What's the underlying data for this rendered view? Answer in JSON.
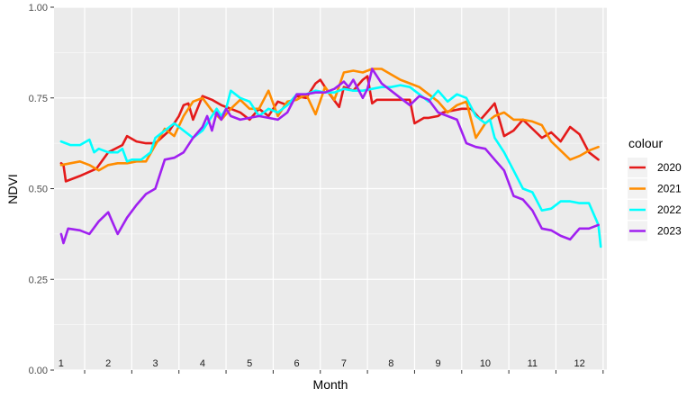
{
  "chart_data": {
    "type": "line",
    "xlabel": "Month",
    "ylabel": "NDVI",
    "xlim": [
      1,
      12.5
    ],
    "ylim": [
      0,
      1
    ],
    "yticks": [
      0.0,
      0.25,
      0.5,
      0.75,
      1.0
    ],
    "ytick_labels": [
      "0.00",
      "0.25",
      "0.50",
      "0.75",
      "1.00"
    ],
    "month_labels": [
      "1",
      "2",
      "3",
      "4",
      "5",
      "6",
      "7",
      "8",
      "9",
      "10",
      "11",
      "12"
    ],
    "grid": true,
    "legend": {
      "title": "colour",
      "placement": "right"
    },
    "colors": {
      "background_panel": "#ebebeb",
      "grid": "#ffffff"
    },
    "series": [
      {
        "name": "2020",
        "color": "#e41a1a",
        "x": [
          1.0,
          1.05,
          1.1,
          1.4,
          1.75,
          2.0,
          2.3,
          2.4,
          2.6,
          2.8,
          3.0,
          3.3,
          3.5,
          3.6,
          3.7,
          3.8,
          4.0,
          4.2,
          4.4,
          4.6,
          4.8,
          5.0,
          5.2,
          5.4,
          5.6,
          5.8,
          6.0,
          6.2,
          6.4,
          6.5,
          6.7,
          6.9,
          7.0,
          7.2,
          7.4,
          7.5,
          7.6,
          7.7,
          7.8,
          8.0,
          8.2,
          8.4,
          8.5,
          8.7,
          8.8,
          9.0,
          9.1,
          9.3,
          9.5,
          9.7,
          9.9,
          10.0,
          10.2,
          10.4,
          10.6,
          10.8,
          11.0,
          11.2,
          11.4,
          11.6,
          11.8,
          12.0,
          12.2,
          12.4
        ],
        "values": [
          0.57,
          0.565,
          0.52,
          0.535,
          0.555,
          0.6,
          0.62,
          0.645,
          0.63,
          0.625,
          0.625,
          0.66,
          0.7,
          0.73,
          0.735,
          0.69,
          0.755,
          0.745,
          0.73,
          0.72,
          0.71,
          0.69,
          0.72,
          0.7,
          0.74,
          0.73,
          0.755,
          0.75,
          0.79,
          0.8,
          0.76,
          0.725,
          0.78,
          0.77,
          0.8,
          0.81,
          0.735,
          0.745,
          0.745,
          0.745,
          0.745,
          0.745,
          0.68,
          0.695,
          0.695,
          0.7,
          0.71,
          0.715,
          0.72,
          0.72,
          0.69,
          0.705,
          0.735,
          0.645,
          0.66,
          0.69,
          0.665,
          0.64,
          0.655,
          0.63,
          0.67,
          0.65,
          0.6,
          0.58
        ]
      },
      {
        "name": "2021",
        "color": "#ff8c00",
        "x": [
          1.0,
          1.2,
          1.4,
          1.6,
          1.8,
          2.0,
          2.2,
          2.4,
          2.6,
          2.8,
          3.0,
          3.2,
          3.4,
          3.6,
          3.8,
          4.0,
          4.2,
          4.4,
          4.6,
          4.8,
          5.0,
          5.2,
          5.4,
          5.6,
          5.8,
          6.0,
          6.2,
          6.4,
          6.6,
          6.8,
          7.0,
          7.2,
          7.4,
          7.6,
          7.8,
          8.0,
          8.2,
          8.4,
          8.6,
          8.8,
          9.0,
          9.2,
          9.4,
          9.6,
          9.8,
          10.0,
          10.2,
          10.4,
          10.6,
          10.8,
          11.0,
          11.2,
          11.4,
          11.6,
          11.8,
          12.0,
          12.2,
          12.4
        ],
        "values": [
          0.565,
          0.57,
          0.575,
          0.565,
          0.55,
          0.565,
          0.57,
          0.57,
          0.575,
          0.575,
          0.62,
          0.665,
          0.645,
          0.7,
          0.74,
          0.75,
          0.715,
          0.69,
          0.72,
          0.745,
          0.72,
          0.72,
          0.77,
          0.7,
          0.74,
          0.745,
          0.76,
          0.705,
          0.78,
          0.745,
          0.82,
          0.825,
          0.82,
          0.83,
          0.83,
          0.815,
          0.8,
          0.79,
          0.78,
          0.76,
          0.74,
          0.71,
          0.73,
          0.74,
          0.64,
          0.68,
          0.7,
          0.71,
          0.69,
          0.69,
          0.685,
          0.675,
          0.63,
          0.605,
          0.58,
          0.59,
          0.605,
          0.615
        ]
      },
      {
        "name": "2022",
        "color": "#00ffff",
        "x": [
          1.0,
          1.2,
          1.4,
          1.6,
          1.7,
          1.8,
          2.0,
          2.2,
          2.3,
          2.4,
          2.5,
          2.7,
          2.9,
          3.0,
          3.2,
          3.4,
          3.6,
          3.8,
          4.0,
          4.2,
          4.3,
          4.4,
          4.5,
          4.6,
          4.8,
          5.0,
          5.2,
          5.4,
          5.6,
          5.8,
          6.0,
          6.2,
          6.4,
          6.6,
          6.8,
          7.0,
          7.2,
          7.4,
          7.6,
          7.8,
          8.0,
          8.2,
          8.4,
          8.6,
          8.8,
          9.0,
          9.2,
          9.4,
          9.6,
          9.8,
          10.0,
          10.1,
          10.2,
          10.4,
          10.6,
          10.8,
          11.0,
          11.2,
          11.4,
          11.6,
          11.8,
          12.0,
          12.2,
          12.4,
          12.45
        ],
        "values": [
          0.63,
          0.62,
          0.62,
          0.635,
          0.6,
          0.61,
          0.6,
          0.6,
          0.61,
          0.575,
          0.58,
          0.58,
          0.6,
          0.64,
          0.66,
          0.68,
          0.66,
          0.64,
          0.66,
          0.7,
          0.72,
          0.7,
          0.72,
          0.77,
          0.75,
          0.74,
          0.7,
          0.72,
          0.71,
          0.73,
          0.76,
          0.76,
          0.77,
          0.765,
          0.765,
          0.775,
          0.77,
          0.77,
          0.775,
          0.78,
          0.78,
          0.785,
          0.78,
          0.76,
          0.74,
          0.77,
          0.74,
          0.76,
          0.75,
          0.7,
          0.68,
          0.69,
          0.64,
          0.6,
          0.55,
          0.5,
          0.49,
          0.44,
          0.445,
          0.465,
          0.465,
          0.46,
          0.46,
          0.4,
          0.34
        ]
      },
      {
        "name": "2023",
        "color": "#a020f0",
        "x": [
          1.0,
          1.05,
          1.15,
          1.4,
          1.6,
          1.8,
          2.0,
          2.1,
          2.2,
          2.4,
          2.6,
          2.8,
          3.0,
          3.2,
          3.4,
          3.6,
          3.8,
          4.0,
          4.1,
          4.2,
          4.3,
          4.4,
          4.5,
          4.6,
          4.8,
          5.0,
          5.2,
          5.4,
          5.6,
          5.8,
          6.0,
          6.2,
          6.4,
          6.6,
          6.8,
          7.0,
          7.1,
          7.2,
          7.4,
          7.5,
          7.6,
          7.8,
          8.0,
          8.2,
          8.4,
          8.6,
          8.8,
          9.0,
          9.2,
          9.4,
          9.6,
          9.8,
          10.0,
          10.2,
          10.4,
          10.6,
          10.8,
          11.0,
          11.2,
          11.4,
          11.6,
          11.8,
          12.0,
          12.2,
          12.4
        ],
        "values": [
          0.375,
          0.35,
          0.39,
          0.385,
          0.375,
          0.41,
          0.435,
          0.405,
          0.375,
          0.42,
          0.455,
          0.485,
          0.5,
          0.58,
          0.585,
          0.6,
          0.64,
          0.67,
          0.7,
          0.66,
          0.71,
          0.69,
          0.72,
          0.7,
          0.69,
          0.695,
          0.7,
          0.695,
          0.69,
          0.71,
          0.76,
          0.76,
          0.765,
          0.765,
          0.775,
          0.795,
          0.78,
          0.8,
          0.75,
          0.775,
          0.83,
          0.79,
          0.77,
          0.75,
          0.73,
          0.755,
          0.745,
          0.71,
          0.7,
          0.69,
          0.625,
          0.615,
          0.61,
          0.58,
          0.55,
          0.48,
          0.47,
          0.44,
          0.39,
          0.385,
          0.37,
          0.36,
          0.39,
          0.39,
          0.4
        ]
      }
    ]
  }
}
